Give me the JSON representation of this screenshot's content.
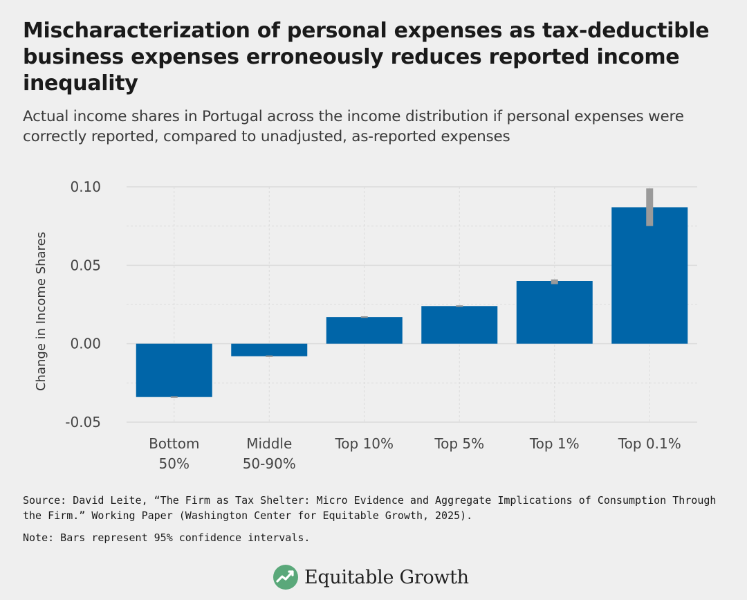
{
  "header": {
    "title": "Mischaracterization of personal expenses as tax-deductible business expenses erroneously reduces reported income inequality",
    "subtitle": "Actual income shares in Portugal across the income distribution if personal expenses were correctly reported, compared to unadjusted, as-reported expenses"
  },
  "chart_data": {
    "type": "bar",
    "categories": [
      [
        "Bottom",
        "50%"
      ],
      [
        "Middle",
        "50-90%"
      ],
      [
        "Top 10%"
      ],
      [
        "Top 5%"
      ],
      [
        "Top 1%"
      ],
      [
        "Top 0.1%"
      ]
    ],
    "values": [
      -0.034,
      -0.008,
      0.017,
      0.024,
      0.04,
      0.087
    ],
    "ci_low": [
      -0.0345,
      -0.0085,
      0.0165,
      0.0235,
      0.038,
      0.075
    ],
    "ci_high": [
      -0.0335,
      -0.0075,
      0.0175,
      0.0245,
      0.041,
      0.099
    ],
    "title": "",
    "xlabel": "",
    "ylabel": "Change in Income Shares",
    "ylim": [
      -0.05,
      0.1
    ],
    "yticks": [
      -0.05,
      0.0,
      0.05,
      0.1
    ],
    "ytick_labels": [
      "-0.05",
      "0.00",
      "0.05",
      "0.10"
    ],
    "grid": true,
    "bar_color": "#0065a8",
    "ci_color": "#9a9a9a",
    "grid_color": "#dcdcdc"
  },
  "footer": {
    "source": "Source: David Leite, “The Firm as Tax Shelter: Micro Evidence and Aggregate Implications of Consumption Through the Firm.” Working Paper (Washington Center for Equitable Growth, 2025).",
    "note": "Note: Bars represent 95% confidence intervals.",
    "brand": "Equitable Growth",
    "brand_icon": "growth-chart-logo-icon",
    "brand_color": "#5aa87a"
  }
}
